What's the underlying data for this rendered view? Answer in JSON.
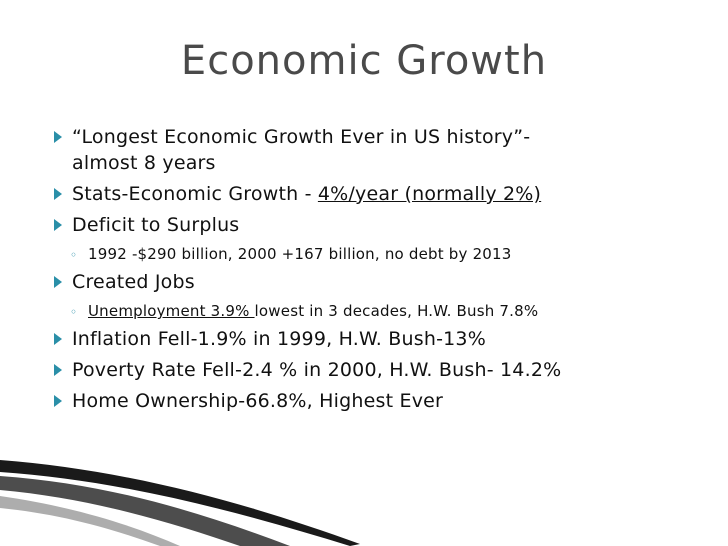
{
  "slide": {
    "title": "Economic Growth",
    "bullets": {
      "b1_line1": "“Longest Economic Growth Ever in US history”-",
      "b1_line2": "almost 8 years",
      "b2_prefix": "Stats-Economic Growth - ",
      "b2_underlined": "4%/year (normally 2%)",
      "b3": "Deficit to Surplus",
      "b3_sub": "1992 -$290 billion, 2000 +167 billion, no debt by 2013",
      "b4": "Created Jobs",
      "b4_sub_underlined": "Unemployment 3.9% ",
      "b4_sub_rest": "lowest in 3 decades, H.W. Bush 7.8%",
      "b5": "Inflation Fell-1.9% in 1999, H.W. Bush-13%",
      "b6": "Poverty Rate Fell-2.4 % in 2000, H.W. Bush- 14.2%",
      "b7": "Home Ownership-66.8%, Highest Ever"
    },
    "sub_bullet_glyph": "◦"
  },
  "colors": {
    "accent": "#2a8fa8",
    "title": "#4a4a4a",
    "text": "#111111"
  }
}
